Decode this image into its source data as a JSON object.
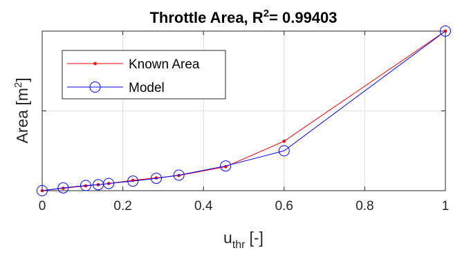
{
  "chart_data": {
    "type": "line",
    "title": "Throttle Area, R",
    "title_superscript": "2",
    "title_value": "= 0.99403",
    "xlabel": "u",
    "xlabel_subscript": "thr",
    "xlabel_unit": "[-]",
    "ylabel": "Area [m",
    "ylabel_superscript": "2",
    "ylabel_close": "]",
    "xlim": [
      0,
      1
    ],
    "ylim": [
      0,
      2
    ],
    "x_ticks": [
      0,
      0.2,
      0.4,
      0.6,
      0.8,
      1
    ],
    "x_tick_labels": [
      "0",
      "0.2",
      "0.4",
      "0.6",
      "0.8",
      "1"
    ],
    "y_ticks": [
      0,
      1,
      2
    ],
    "grid": true,
    "legend_position": "top-left",
    "series": [
      {
        "name": "Known Area",
        "color": "#ff0000",
        "marker": "dot",
        "x": [
          0,
          0.052,
          0.108,
          0.139,
          0.165,
          0.225,
          0.283,
          0.339,
          0.455,
          0.6,
          1
        ],
        "y": [
          0.0,
          0.03,
          0.06,
          0.075,
          0.09,
          0.13,
          0.16,
          0.19,
          0.3,
          0.62,
          2.0
        ]
      },
      {
        "name": "Model",
        "color": "#0000ff",
        "marker": "circle",
        "x": [
          0,
          0.052,
          0.108,
          0.139,
          0.165,
          0.225,
          0.283,
          0.339,
          0.455,
          0.6,
          1
        ],
        "y": [
          0.0,
          0.035,
          0.065,
          0.075,
          0.09,
          0.12,
          0.155,
          0.195,
          0.31,
          0.5,
          2.0
        ]
      }
    ]
  }
}
